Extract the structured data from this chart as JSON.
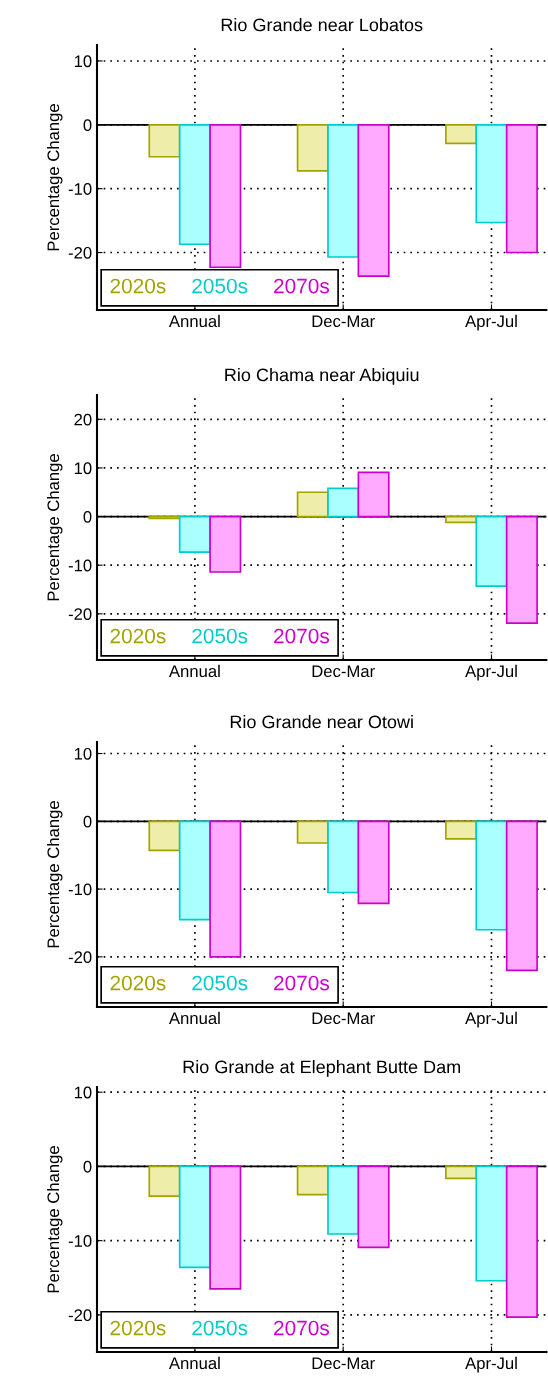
{
  "chart_data": [
    {
      "type": "bar",
      "title": "Rio Grande near Lobatos",
      "ylabel": "Percentage Change",
      "categories": [
        "Annual",
        "Dec-Mar",
        "Apr-Jul"
      ],
      "ylim": [
        -29,
        12.5
      ],
      "yticks": [
        -20,
        -10,
        0,
        10
      ],
      "grid": true,
      "legend": "bottom left",
      "ref_lines": [
        {
          "axis": "y",
          "value": 0,
          "color": "#000000"
        }
      ],
      "series": [
        {
          "name": "2020s",
          "color": "#eeeeaa",
          "values": [
            -5,
            -7.2,
            -2.9
          ]
        },
        {
          "name": "2050s",
          "color": "#aaffff",
          "values": [
            -18.7,
            -20.7,
            -15.3
          ]
        },
        {
          "name": "2070s",
          "color": "#ffaaff",
          "values": [
            -22.3,
            -23.7,
            -20
          ]
        }
      ]
    },
    {
      "type": "bar",
      "title": "Rio Chama near Abiquiu",
      "ylabel": "Percentage Change",
      "categories": [
        "Annual",
        "Dec-Mar",
        "Apr-Jul"
      ],
      "ylim": [
        -29.5,
        25
      ],
      "yticks": [
        -20,
        -10,
        0,
        10,
        20
      ],
      "grid": true,
      "legend": "bottom left",
      "ref_lines": [
        {
          "axis": "y",
          "value": 0,
          "color": "#000000"
        }
      ],
      "series": [
        {
          "name": "2020s",
          "color": "#eeeeaa",
          "values": [
            -0.4,
            5,
            -1.2
          ]
        },
        {
          "name": "2050s",
          "color": "#aaffff",
          "values": [
            -7.3,
            5.8,
            -14.3
          ]
        },
        {
          "name": "2070s",
          "color": "#ffaaff",
          "values": [
            -11.4,
            9.1,
            -21.9
          ]
        }
      ]
    },
    {
      "type": "bar",
      "title": "Rio Grande near Otowi",
      "ylabel": "Percentage Change",
      "categories": [
        "Annual",
        "Dec-Mar",
        "Apr-Jul"
      ],
      "ylim": [
        -27.4,
        11.7
      ],
      "yticks": [
        -20,
        -10,
        0,
        10
      ],
      "grid": true,
      "legend": "bottom left",
      "ref_lines": [
        {
          "axis": "y",
          "value": 0,
          "color": "#000000"
        }
      ],
      "series": [
        {
          "name": "2020s",
          "color": "#eeeeaa",
          "values": [
            -4.3,
            -3.2,
            -2.6
          ]
        },
        {
          "name": "2050s",
          "color": "#aaffff",
          "values": [
            -14.5,
            -10.5,
            -16
          ]
        },
        {
          "name": "2070s",
          "color": "#ffaaff",
          "values": [
            -20,
            -12.1,
            -22
          ]
        }
      ]
    },
    {
      "type": "bar",
      "title": "Rio Grande at Elephant Butte Dam",
      "ylabel": "Percentage Change",
      "categories": [
        "Annual",
        "Dec-Mar",
        "Apr-Jul"
      ],
      "ylim": [
        -25,
        10.7
      ],
      "yticks": [
        -20,
        -10,
        0,
        10
      ],
      "grid": true,
      "legend": "bottom left",
      "ref_lines": [
        {
          "axis": "y",
          "value": 0,
          "color": "#000000"
        }
      ],
      "series": [
        {
          "name": "2020s",
          "color": "#eeeeaa",
          "values": [
            -4,
            -3.8,
            -1.6
          ]
        },
        {
          "name": "2050s",
          "color": "#aaffff",
          "values": [
            -13.6,
            -9.1,
            -15.4
          ]
        },
        {
          "name": "2070s",
          "color": "#ffaaff",
          "values": [
            -16.5,
            -10.9,
            -20.3
          ]
        }
      ]
    }
  ]
}
